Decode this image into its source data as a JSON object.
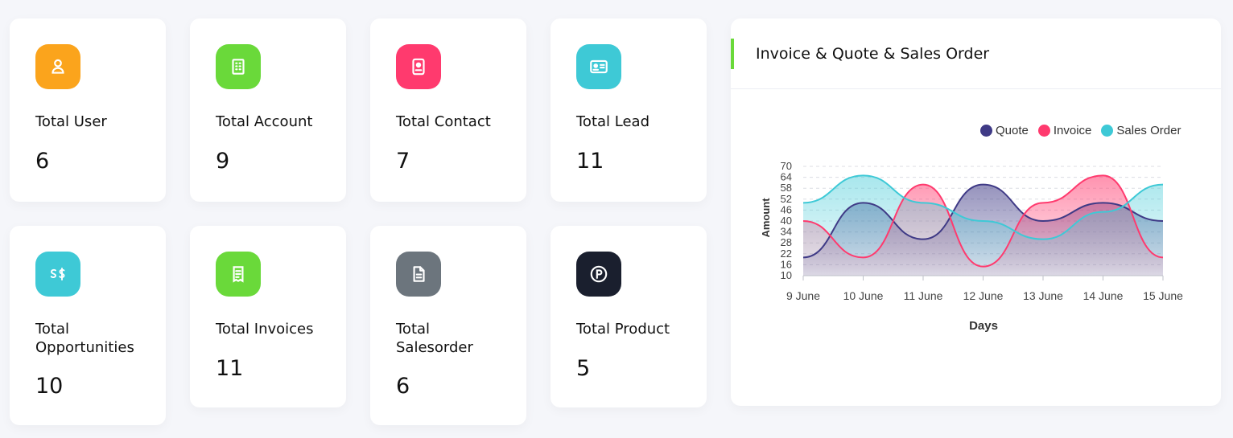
{
  "stats": [
    {
      "label": "Total User",
      "value": "6",
      "icon": "user-icon",
      "color": "#fba41c"
    },
    {
      "label": "Total Account",
      "value": "9",
      "icon": "building-icon",
      "color": "#6ad93a"
    },
    {
      "label": "Total Contact",
      "value": "7",
      "icon": "contact-badge-icon",
      "color": "#ff3a6e"
    },
    {
      "label": "Total Lead",
      "value": "11",
      "icon": "id-card-icon",
      "color": "#3ec9d6"
    },
    {
      "label": "Total Opportunities",
      "value": "10",
      "icon": "currency-icon",
      "color": "#3ec9d6"
    },
    {
      "label": "Total Invoices",
      "value": "11",
      "icon": "receipt-icon",
      "color": "#6ad93a"
    },
    {
      "label": "Total Salesorder",
      "value": "6",
      "icon": "document-icon",
      "color": "#6c757d"
    },
    {
      "label": "Total Product",
      "value": "5",
      "icon": "product-p-icon",
      "color": "#1a1f2e"
    }
  ],
  "chart": {
    "title": "Invoice & Quote & Sales Order",
    "accent_color": "#6ad93a"
  },
  "chart_data": {
    "type": "area",
    "title": "Invoice & Quote & Sales Order",
    "xlabel": "Days",
    "ylabel": "Amount",
    "categories": [
      "9 June",
      "10 June",
      "11 June",
      "12 June",
      "13 June",
      "14 June",
      "15 June"
    ],
    "y_ticks": [
      "10",
      "16",
      "22",
      "28",
      "34",
      "40",
      "46",
      "52",
      "58",
      "64",
      "70"
    ],
    "ylim": [
      10,
      70
    ],
    "grid": true,
    "legend_position": "top-right",
    "series": [
      {
        "name": "Quote",
        "color": "#3f3a86",
        "values": [
          20,
          50,
          30,
          60,
          40,
          50,
          40
        ]
      },
      {
        "name": "Invoice",
        "color": "#ff3a6e",
        "values": [
          40,
          20,
          60,
          15,
          50,
          65,
          20
        ]
      },
      {
        "name": "Sales Order",
        "color": "#3ec9d6",
        "values": [
          50,
          65,
          50,
          40,
          30,
          45,
          60
        ]
      }
    ]
  }
}
